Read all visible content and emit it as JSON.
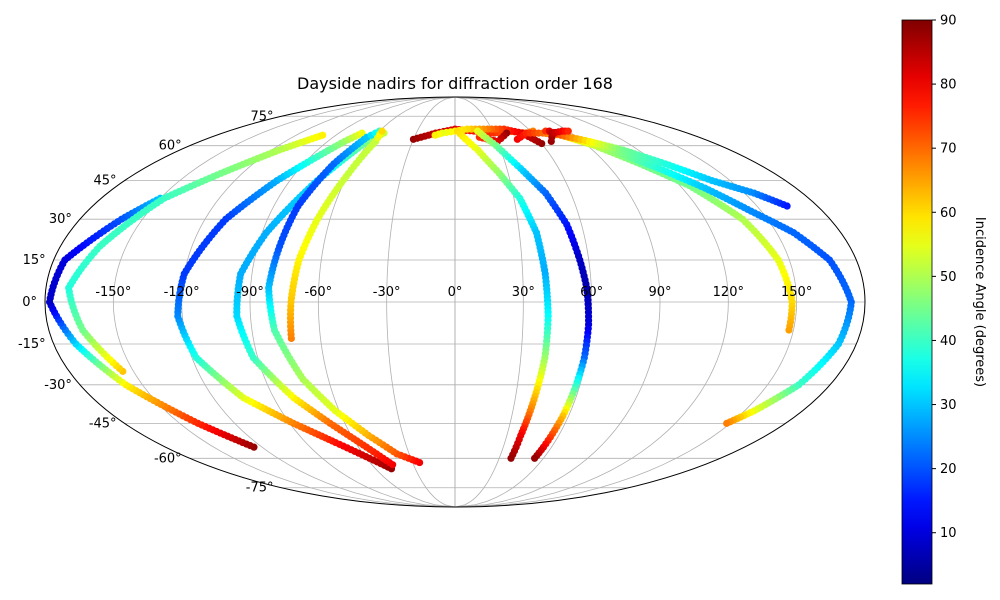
{
  "chart_data": {
    "type": "scatter",
    "projection": "mollweide",
    "title": "Dayside nadirs for diffraction order 168",
    "lon_ticks": [
      -150,
      -120,
      -90,
      -60,
      -30,
      0,
      30,
      60,
      90,
      120,
      150
    ],
    "lon_tick_labels": [
      "-150°",
      "-120°",
      "-90°",
      "-60°",
      "-30°",
      "0°",
      "30°",
      "60°",
      "90°",
      "120°",
      "150°"
    ],
    "lat_ticks": [
      75,
      60,
      45,
      30,
      15,
      0,
      -15,
      -30,
      -45,
      -60,
      -75
    ],
    "lat_tick_labels": [
      "75°",
      "60°",
      "45°",
      "30°",
      "15°",
      "0°",
      "-15°",
      "-30°",
      "-45°",
      "-60°",
      "-75°"
    ],
    "grid": true,
    "colorbar": {
      "label": "Incidence Angle (degrees)",
      "colormap": "jet",
      "range": [
        2,
        90
      ],
      "ticks": [
        10,
        20,
        30,
        40,
        50,
        60,
        70,
        80,
        90
      ],
      "tick_labels": [
        "10",
        "20",
        "30",
        "40",
        "50",
        "60",
        "70",
        "80",
        "90"
      ]
    },
    "series": [
      {
        "points": [
          [
            -125,
            -55,
            88
          ],
          [
            -140,
            -45,
            76
          ],
          [
            -158,
            -30,
            58
          ],
          [
            -170,
            -15,
            32
          ],
          [
            -178,
            0,
            8
          ],
          [
            -175,
            15,
            10
          ],
          [
            -160,
            30,
            20
          ],
          [
            -150,
            38,
            30
          ]
        ]
      },
      {
        "points": [
          [
            -155,
            -25,
            62
          ],
          [
            -165,
            -10,
            45
          ],
          [
            -170,
            5,
            38
          ],
          [
            -162,
            20,
            40
          ],
          [
            -148,
            38,
            40
          ],
          [
            -132,
            48,
            45
          ],
          [
            -115,
            58,
            50
          ],
          [
            -100,
            65,
            58
          ]
        ]
      },
      {
        "points": [
          [
            -48,
            -65,
            88
          ],
          [
            -58,
            -60,
            84
          ],
          [
            -72,
            -53,
            78
          ],
          [
            -88,
            -45,
            68
          ],
          [
            -105,
            -35,
            55
          ],
          [
            -118,
            -20,
            38
          ],
          [
            -122,
            -5,
            25
          ],
          [
            -120,
            10,
            18
          ],
          [
            -110,
            30,
            18
          ],
          [
            -97,
            45,
            28
          ],
          [
            -78,
            62,
            48
          ],
          [
            -72,
            66,
            56
          ]
        ]
      },
      {
        "points": [
          [
            -45,
            -63,
            80
          ],
          [
            -55,
            -55,
            75
          ],
          [
            -68,
            -45,
            70
          ],
          [
            -80,
            -35,
            58
          ],
          [
            -92,
            -20,
            40
          ],
          [
            -96,
            -5,
            32
          ],
          [
            -95,
            10,
            28
          ],
          [
            -88,
            25,
            28
          ],
          [
            -75,
            45,
            32
          ],
          [
            -62,
            62,
            45
          ],
          [
            -55,
            66,
            52
          ]
        ]
      },
      {
        "points": [
          [
            -25,
            -62,
            80
          ],
          [
            -38,
            -58,
            72
          ],
          [
            -50,
            -50,
            64
          ],
          [
            -62,
            -40,
            55
          ],
          [
            -72,
            -28,
            50
          ],
          [
            -80,
            -10,
            42
          ],
          [
            -82,
            5,
            30
          ],
          [
            -80,
            20,
            20
          ],
          [
            -78,
            35,
            18
          ],
          [
            -72,
            52,
            22
          ],
          [
            -65,
            64,
            30
          ],
          [
            -60,
            67,
            38
          ]
        ]
      },
      {
        "points": [
          [
            -73,
            -13,
            68
          ],
          [
            -72,
            0,
            62
          ],
          [
            -70,
            15,
            58
          ],
          [
            -66,
            30,
            55
          ],
          [
            -60,
            48,
            52
          ],
          [
            -56,
            62,
            52
          ],
          [
            -58,
            67,
            60
          ]
        ]
      },
      {
        "points": [
          [
            -30,
            63,
            88
          ],
          [
            -15,
            66,
            84
          ],
          [
            0,
            68,
            82
          ],
          [
            15,
            67,
            78
          ],
          [
            30,
            66,
            75
          ],
          [
            42,
            67,
            72
          ],
          [
            55,
            66,
            70
          ],
          [
            62,
            67,
            68
          ]
        ]
      },
      {
        "points": [
          [
            60,
            61,
            88
          ],
          [
            52,
            66,
            82
          ],
          [
            40,
            68,
            75
          ],
          [
            30,
            68,
            70
          ],
          [
            20,
            68,
            65
          ],
          [
            10,
            68,
            60
          ],
          [
            0,
            67,
            58
          ],
          [
            -10,
            66,
            55
          ],
          [
            -15,
            65,
            58
          ]
        ]
      },
      {
        "points": [
          [
            2,
            67,
            60
          ],
          [
            15,
            58,
            55
          ],
          [
            25,
            48,
            48
          ],
          [
            33,
            38,
            38
          ],
          [
            38,
            25,
            30
          ],
          [
            40,
            10,
            28
          ],
          [
            41,
            -5,
            35
          ],
          [
            41,
            -20,
            48
          ],
          [
            40,
            -30,
            58
          ],
          [
            39,
            -40,
            68
          ],
          [
            38,
            -50,
            80
          ],
          [
            38,
            -60,
            88
          ]
        ]
      },
      {
        "points": [
          [
            40,
            66,
            88
          ],
          [
            30,
            62,
            82
          ],
          [
            18,
            64,
            75
          ]
        ]
      },
      {
        "points": [
          [
            18,
            67,
            55
          ],
          [
            28,
            60,
            45
          ],
          [
            38,
            50,
            32
          ],
          [
            47,
            40,
            22
          ],
          [
            53,
            28,
            15
          ],
          [
            56,
            15,
            8
          ],
          [
            58,
            5,
            6
          ],
          [
            59,
            -8,
            10
          ],
          [
            59,
            -20,
            22
          ],
          [
            58,
            -32,
            42
          ],
          [
            57,
            -42,
            62
          ],
          [
            55,
            -55,
            80
          ],
          [
            54,
            -60,
            88
          ]
        ]
      },
      {
        "points": [
          [
            45,
            63,
            80
          ],
          [
            55,
            66,
            76
          ],
          [
            68,
            66,
            70
          ],
          [
            80,
            65,
            60
          ],
          [
            95,
            60,
            50
          ],
          [
            110,
            52,
            45
          ],
          [
            125,
            43,
            45
          ],
          [
            138,
            30,
            50
          ],
          [
            145,
            15,
            55
          ],
          [
            148,
            0,
            60
          ],
          [
            148,
            -10,
            65
          ]
        ]
      },
      {
        "points": [
          [
            72,
            67,
            75
          ],
          [
            88,
            63,
            60
          ],
          [
            102,
            58,
            48
          ],
          [
            118,
            50,
            38
          ],
          [
            132,
            42,
            30
          ],
          [
            145,
            33,
            25
          ],
          [
            158,
            25,
            22
          ],
          [
            168,
            15,
            20
          ],
          [
            174,
            0,
            22
          ],
          [
            172,
            -15,
            30
          ],
          [
            165,
            -30,
            40
          ],
          [
            155,
            -40,
            55
          ],
          [
            148,
            -45,
            68
          ]
        ]
      },
      {
        "points": [
          [
            75,
            67,
            82
          ],
          [
            80,
            65,
            72
          ],
          [
            95,
            62,
            58
          ],
          [
            110,
            58,
            45
          ],
          [
            125,
            52,
            38
          ],
          [
            140,
            45,
            30
          ],
          [
            155,
            40,
            25
          ],
          [
            165,
            35,
            15
          ]
        ]
      },
      {
        "points": [
          [
            68,
            62,
            88
          ],
          [
            75,
            66,
            85
          ],
          [
            85,
            67,
            80
          ],
          [
            90,
            67,
            76
          ]
        ]
      }
    ]
  }
}
